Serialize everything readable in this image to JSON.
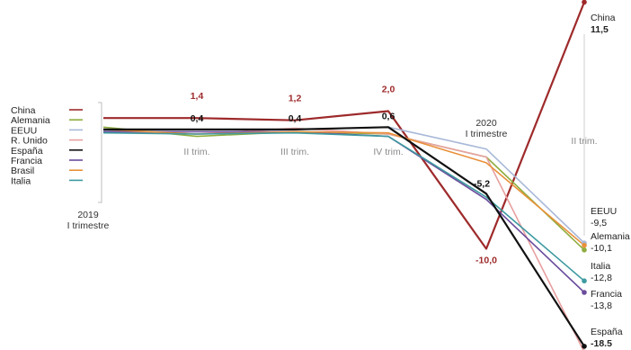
{
  "chart_data": {
    "type": "line",
    "categories": [
      "2019 I trimestre",
      "II trim.",
      "III trim.",
      "IV trim.",
      "2020 I trimestre",
      "II trim."
    ],
    "category_labels": [
      {
        "year": "2019",
        "quarter": "I trimestre"
      },
      {
        "year": "",
        "quarter": "II trim."
      },
      {
        "year": "",
        "quarter": "III trim."
      },
      {
        "year": "",
        "quarter": "IV trim."
      },
      {
        "year": "2020",
        "quarter": "I trimestre"
      },
      {
        "year": "",
        "quarter": "II trim."
      }
    ],
    "ylim": [
      -20,
      13
    ],
    "legend_position": "left",
    "series": [
      {
        "name": "China",
        "color": "#9e2a2b",
        "values": [
          1.4,
          1.4,
          1.2,
          2.0,
          -10.0,
          11.5
        ]
      },
      {
        "name": "Alemania",
        "color": "#8fad3f",
        "values": [
          0.6,
          -0.2,
          0.2,
          0.0,
          -2.0,
          -10.1
        ]
      },
      {
        "name": "EEUU",
        "color": "#a8b8d8",
        "values": [
          0.3,
          0.4,
          0.4,
          0.6,
          -1.3,
          -9.5
        ]
      },
      {
        "name": "R. Unido",
        "color": "#e8a0a0",
        "values": [
          0.2,
          0.0,
          0.5,
          0.0,
          -2.0,
          -19.0
        ]
      },
      {
        "name": "España",
        "color": "#111111",
        "values": [
          0.4,
          0.4,
          0.4,
          0.6,
          -5.2,
          -18.5
        ]
      },
      {
        "name": "Francia",
        "color": "#6a4c9c",
        "values": [
          0.2,
          0.2,
          0.2,
          -0.2,
          -5.7,
          -13.8
        ]
      },
      {
        "name": "Brasil",
        "color": "#e8913a",
        "values": [
          0.4,
          0.0,
          0.2,
          0.1,
          -2.5,
          -9.7
        ]
      },
      {
        "name": "Italia",
        "color": "#3d9aa0",
        "values": [
          0.1,
          0.0,
          0.1,
          -0.2,
          -5.5,
          -12.8
        ]
      }
    ],
    "value_labels": [
      {
        "series": "China",
        "index": 1,
        "text": "1,4"
      },
      {
        "series": "China",
        "index": 2,
        "text": "1,2"
      },
      {
        "series": "China",
        "index": 3,
        "text": "2,0"
      },
      {
        "series": "China",
        "index": 4,
        "text": "-10,0"
      },
      {
        "series": "España",
        "index": 1,
        "text": "0,4"
      },
      {
        "series": "España",
        "index": 2,
        "text": "0,4"
      },
      {
        "series": "España",
        "index": 3,
        "text": "0,6"
      },
      {
        "series": "España",
        "index": 4,
        "text": "-5,2"
      }
    ],
    "end_labels": [
      {
        "series": "China",
        "name": "China",
        "value": "11,5"
      },
      {
        "series": "EEUU",
        "name": "EEUU",
        "value": "-9,5"
      },
      {
        "series": "Alemania",
        "name": "Alemania",
        "value": "-10,1"
      },
      {
        "series": "Italia",
        "name": "Italia",
        "value": "-12,8"
      },
      {
        "series": "Francia",
        "name": "Francia",
        "value": "-13,8"
      },
      {
        "series": "España",
        "name": "España",
        "value": "-18.5"
      }
    ]
  }
}
